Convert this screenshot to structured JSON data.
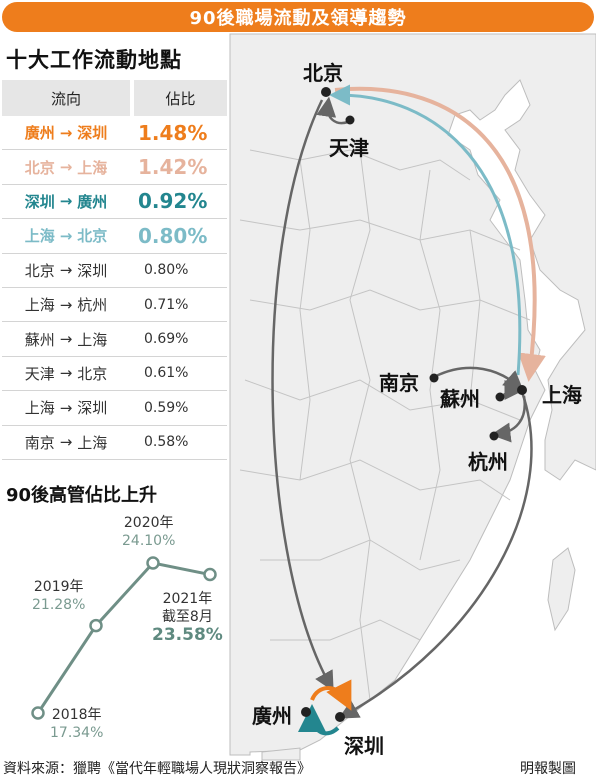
{
  "banner": {
    "title": "90後職場流動及領導趨勢"
  },
  "ranking": {
    "title": "十大工作流動地點",
    "headers": [
      "流向",
      "佔比"
    ],
    "rows": [
      {
        "from": "廣州",
        "arrow": "→",
        "to": "深圳",
        "share": "1.48%",
        "color": "#ee7d1c",
        "highlight": true
      },
      {
        "from": "北京",
        "arrow": "→",
        "to": "上海",
        "share": "1.42%",
        "color": "#e6b39d",
        "highlight": true
      },
      {
        "from": "深圳",
        "arrow": "→",
        "to": "廣州",
        "share": "0.92%",
        "color": "#23868f",
        "highlight": true
      },
      {
        "from": "上海",
        "arrow": "→",
        "to": "北京",
        "share": "0.80%",
        "color": "#7cbbc7",
        "highlight": true
      },
      {
        "from": "北京",
        "arrow": "→",
        "to": "深圳",
        "share": "0.80%",
        "color": "#333333",
        "highlight": false
      },
      {
        "from": "上海",
        "arrow": "→",
        "to": "杭州",
        "share": "0.71%",
        "color": "#333333",
        "highlight": false
      },
      {
        "from": "蘇州",
        "arrow": "→",
        "to": "上海",
        "share": "0.69%",
        "color": "#333333",
        "highlight": false
      },
      {
        "from": "天津",
        "arrow": "→",
        "to": "北京",
        "share": "0.61%",
        "color": "#333333",
        "highlight": false
      },
      {
        "from": "上海",
        "arrow": "→",
        "to": "深圳",
        "share": "0.59%",
        "color": "#333333",
        "highlight": false
      },
      {
        "from": "南京",
        "arrow": "→",
        "to": "上海",
        "share": "0.58%",
        "color": "#333333",
        "highlight": false
      }
    ]
  },
  "trend": {
    "title": "90後高管佔比上升",
    "points": [
      {
        "year": "2018年",
        "value": 17.34,
        "label": "17.34%"
      },
      {
        "year": "2019年",
        "value": 21.28,
        "label": "21.28%"
      },
      {
        "year": "2020年",
        "value": 24.1,
        "label": "24.10%"
      },
      {
        "year": "2021年",
        "note": "截至8月",
        "value": 23.58,
        "label": "23.58%"
      }
    ],
    "line_color": "#6f8f86"
  },
  "map": {
    "cities": [
      "北京",
      "天津",
      "南京",
      "蘇州",
      "上海",
      "杭州",
      "廣州",
      "深圳"
    ],
    "flow_colors": {
      "guangzhou_shenzhen": "#ee7d1c",
      "beijing_shanghai": "#e6b39d",
      "shenzhen_guangzhou": "#23868f",
      "shanghai_beijing": "#7cbbc7",
      "other": "#666666"
    }
  },
  "footer": {
    "source": "資料來源：獵聘《當代年輕職場人現狀洞察報告》",
    "credit": "明報製圖"
  }
}
